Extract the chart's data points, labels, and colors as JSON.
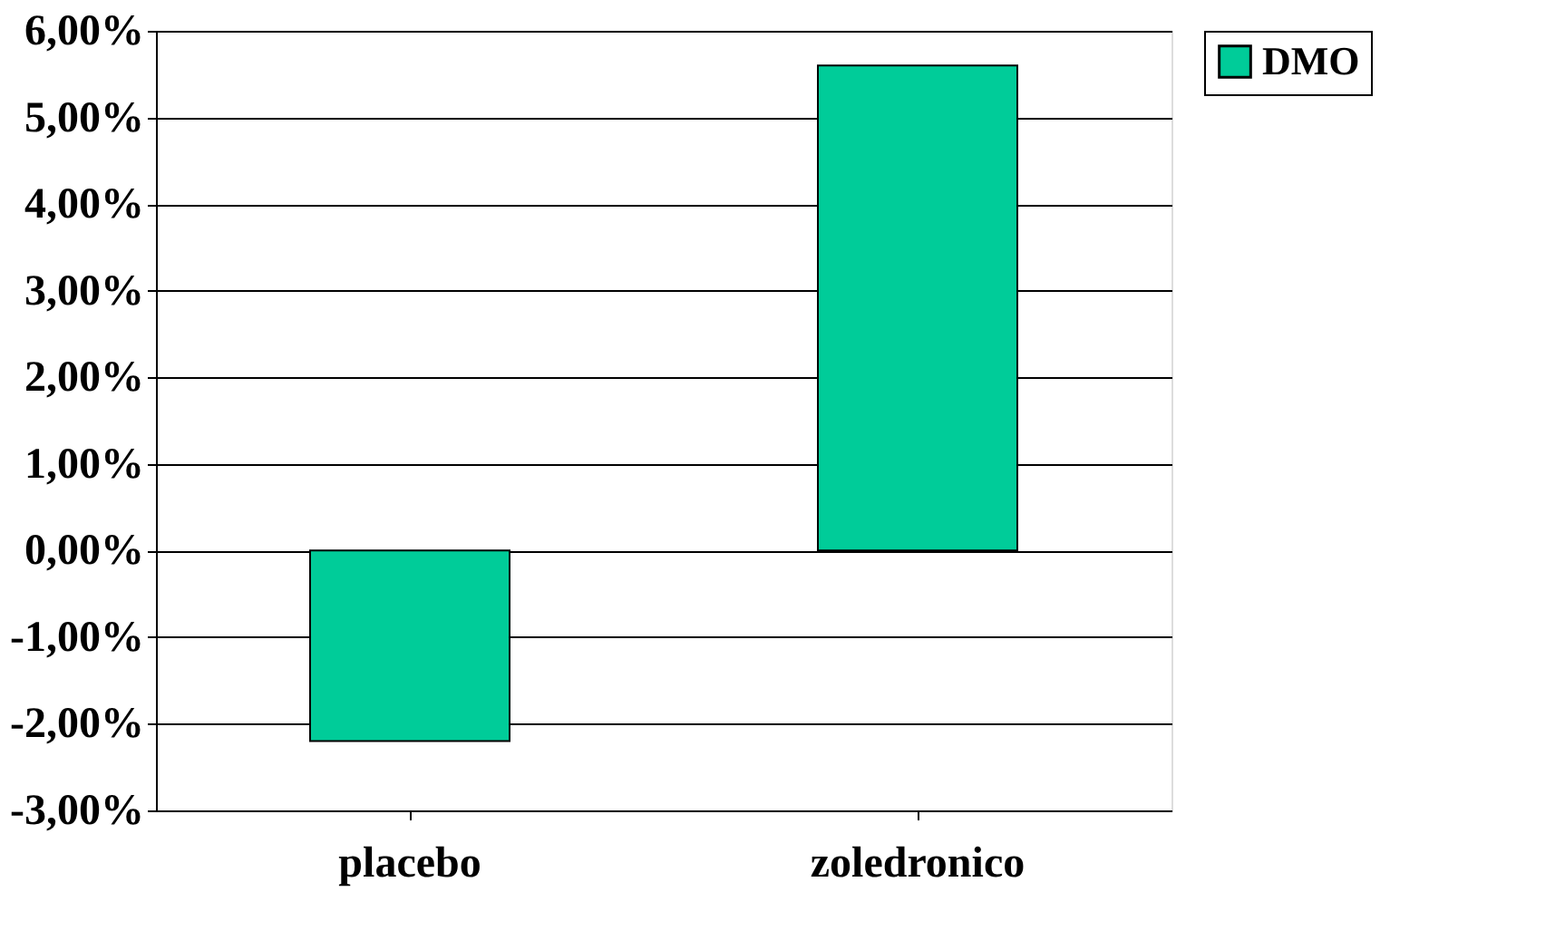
{
  "chart_data": {
    "type": "bar",
    "categories": [
      "placebo",
      "zoledronico"
    ],
    "series": [
      {
        "name": "DMO",
        "color": "#00cc99",
        "values": [
          -2.2,
          5.6
        ]
      }
    ],
    "ylim": [
      -3,
      6
    ],
    "yticks": [
      {
        "value": -3,
        "label": "-3,00%"
      },
      {
        "value": -2,
        "label": "-2,00%"
      },
      {
        "value": -1,
        "label": "-1,00%"
      },
      {
        "value": 0,
        "label": "0,00%"
      },
      {
        "value": 1,
        "label": "1,00%"
      },
      {
        "value": 2,
        "label": "2,00%"
      },
      {
        "value": 3,
        "label": "3,00%"
      },
      {
        "value": 4,
        "label": "4,00%"
      },
      {
        "value": 5,
        "label": "5,00%"
      },
      {
        "value": 6,
        "label": "6,00%"
      }
    ],
    "grid": "y",
    "legend": "right"
  }
}
